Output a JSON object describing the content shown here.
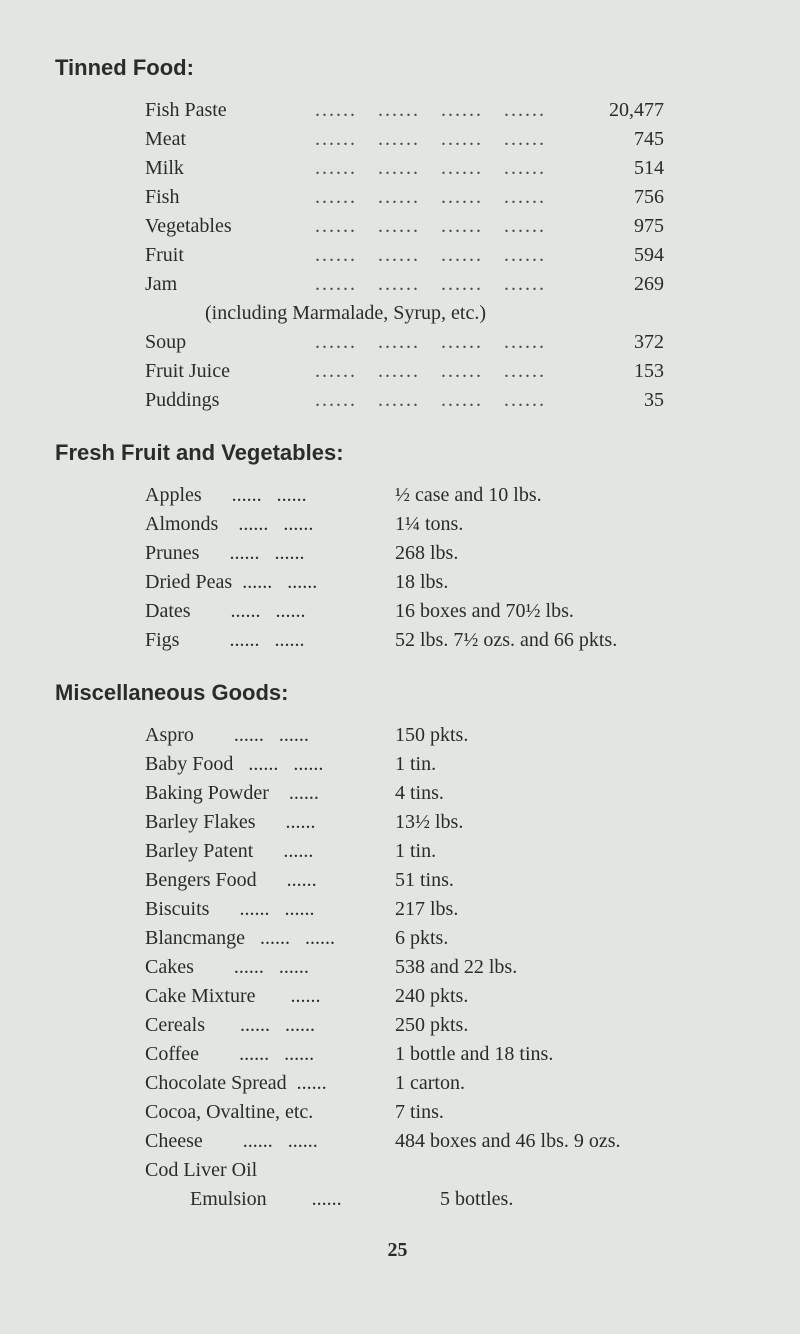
{
  "page": {
    "background_color": "#e1e6e0",
    "text_color": "#2b2b2b",
    "page_number": "25",
    "body_fontsize": 20,
    "heading_fontsize": 22
  },
  "tinned": {
    "heading": "Tinned Food:",
    "items": [
      {
        "label": "Fish Paste",
        "value": "20,477"
      },
      {
        "label": "Meat",
        "value": "745"
      },
      {
        "label": "Milk",
        "value": "514"
      },
      {
        "label": "Fish",
        "value": "756"
      },
      {
        "label": "Vegetables",
        "value": "975"
      },
      {
        "label": "Fruit",
        "value": "594"
      },
      {
        "label": "Jam",
        "value": "269"
      }
    ],
    "note": "(including Marmalade, Syrup, etc.)",
    "items2": [
      {
        "label": "Soup",
        "value": "372"
      },
      {
        "label": "Fruit Juice",
        "value": "153"
      },
      {
        "label": "Puddings",
        "value": "35"
      }
    ]
  },
  "fresh": {
    "heading": "Fresh Fruit and Vegetables:",
    "items": [
      {
        "label": "Apples",
        "value": "½ case and 10 lbs."
      },
      {
        "label": "Almonds",
        "value": "1¼ tons."
      },
      {
        "label": "Prunes",
        "value": "268 lbs."
      },
      {
        "label": "Dried Peas",
        "value": "18 lbs."
      },
      {
        "label": "Dates",
        "value": "16 boxes and 70½ lbs."
      },
      {
        "label": "Figs",
        "value": "52 lbs. 7½ ozs. and 66 pkts."
      }
    ]
  },
  "misc": {
    "heading": "Miscellaneous Goods:",
    "items": [
      {
        "label": "Aspro",
        "value": "150 pkts."
      },
      {
        "label": "Baby Food",
        "value": "1 tin."
      },
      {
        "label": "Baking Powder",
        "value": "4 tins."
      },
      {
        "label": "Barley Flakes",
        "value": "13½ lbs."
      },
      {
        "label": "Barley Patent",
        "value": "1 tin."
      },
      {
        "label": "Bengers Food",
        "value": "51 tins."
      },
      {
        "label": "Biscuits",
        "value": "217 lbs."
      },
      {
        "label": "Blancmange",
        "value": "6 pkts."
      },
      {
        "label": "Cakes",
        "value": "538 and 22 lbs."
      },
      {
        "label": "Cake Mixture",
        "value": "240 pkts."
      },
      {
        "label": "Cereals",
        "value": "250 pkts."
      },
      {
        "label": "Coffee",
        "value": "1 bottle and 18 tins."
      },
      {
        "label": "Chocolate Spread",
        "value": "1 carton."
      },
      {
        "label": "Cocoa, Ovaltine, etc.",
        "value": "7 tins."
      },
      {
        "label": "Cheese",
        "value": "484 boxes and 46 lbs. 9 ozs."
      },
      {
        "label": "Cod Liver Oil",
        "value": ""
      },
      {
        "label": "Emulsion",
        "value": "5 bottles.",
        "indent": true
      }
    ]
  }
}
